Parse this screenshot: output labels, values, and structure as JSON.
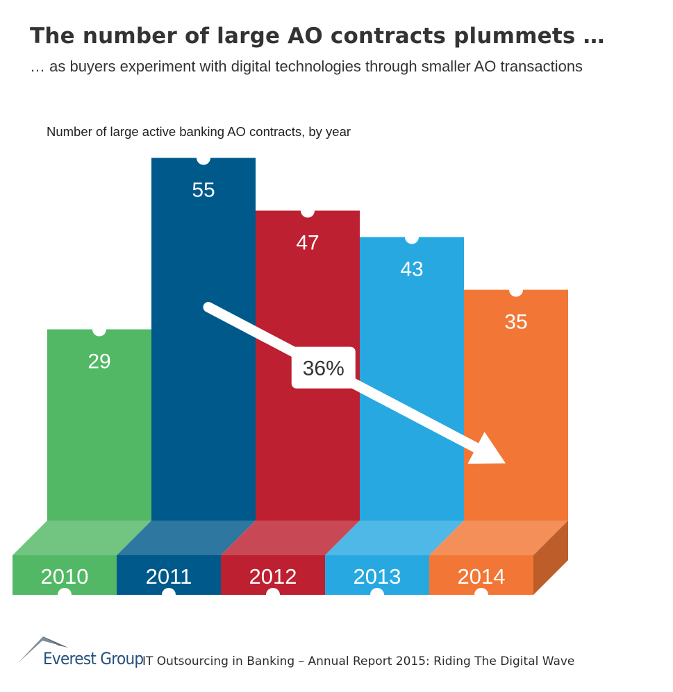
{
  "header": {
    "title": "The number of large AO contracts plummets …",
    "subtitle": "… as buyers experiment with digital technologies through smaller AO transactions"
  },
  "chart_data": {
    "type": "bar",
    "title": "The number of large AO contracts plummets …",
    "subtitle": "… as buyers experiment with digital technologies through smaller AO transactions",
    "ylabel": "Number of large active banking AO contracts, by year",
    "xlabel": "",
    "categories": [
      "2010",
      "2011",
      "2012",
      "2013",
      "2014"
    ],
    "values": [
      29,
      55,
      47,
      43,
      35
    ],
    "colors": [
      "#52b865",
      "#00598b",
      "#bd2030",
      "#28a8e0",
      "#f27736"
    ],
    "annotations": [
      {
        "type": "trend-arrow",
        "from": "2011",
        "to": "2014",
        "label": "36%"
      }
    ],
    "legend": "none",
    "grid": false
  },
  "footer": {
    "brand": "Everest Group",
    "caption": "IT Outsourcing in Banking – Annual Report 2015: Riding The Digital Wave"
  },
  "icons": {
    "logo": "everest-mountain-icon"
  }
}
